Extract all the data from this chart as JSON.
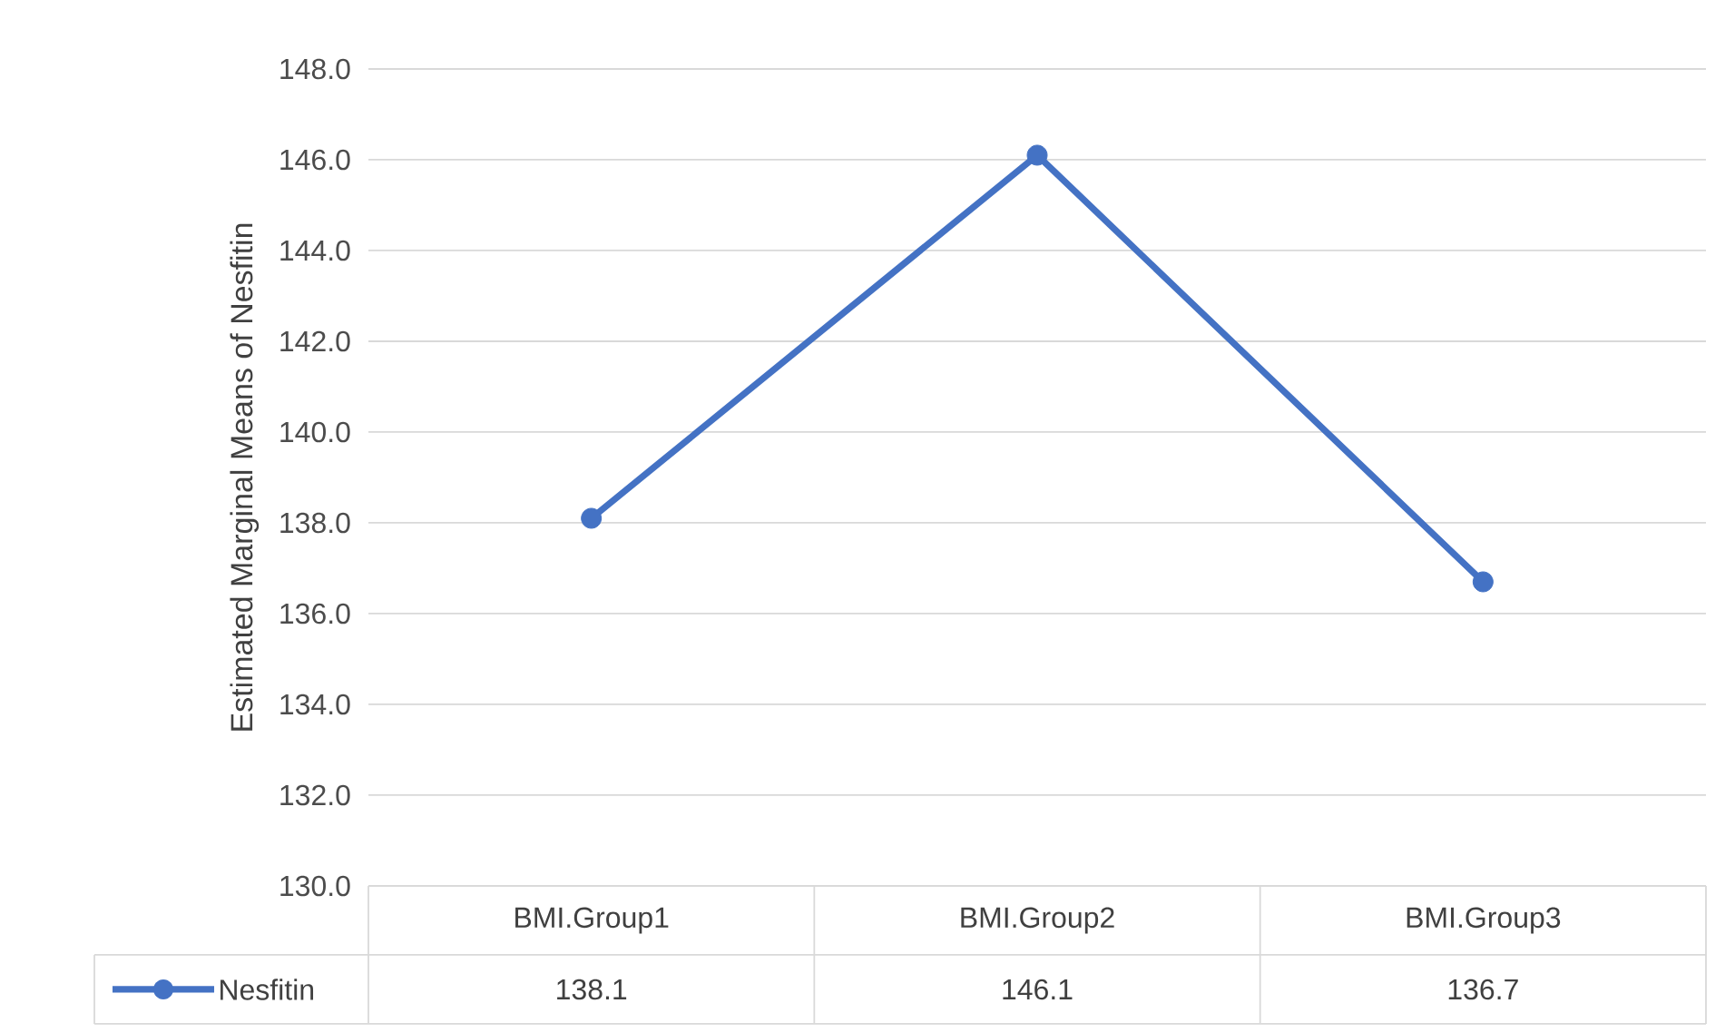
{
  "chart_data": {
    "type": "line",
    "ylabel": "Estimated Marginal Means of  Nesfitin",
    "categories": [
      "BMI.Group1",
      "BMI.Group2",
      "BMI.Group3"
    ],
    "series": [
      {
        "name": "Nesfitin",
        "color": "#4472c4",
        "values": [
          138.1,
          146.1,
          136.7
        ]
      }
    ],
    "ylim": [
      130,
      148
    ],
    "yticks": [
      {
        "value": 130,
        "label": "130.0"
      },
      {
        "value": 132,
        "label": "132.0"
      },
      {
        "value": 134,
        "label": "134.0"
      },
      {
        "value": 136,
        "label": "136.0"
      },
      {
        "value": 138,
        "label": "138.0"
      },
      {
        "value": 140,
        "label": "140.0"
      },
      {
        "value": 142,
        "label": "142.0"
      },
      {
        "value": 144,
        "label": "144.0"
      },
      {
        "value": 146,
        "label": "146.0"
      },
      {
        "value": 148,
        "label": "148.0"
      }
    ],
    "grid": "y",
    "marker": "circle",
    "legend": "bottom",
    "data_labels": true
  }
}
